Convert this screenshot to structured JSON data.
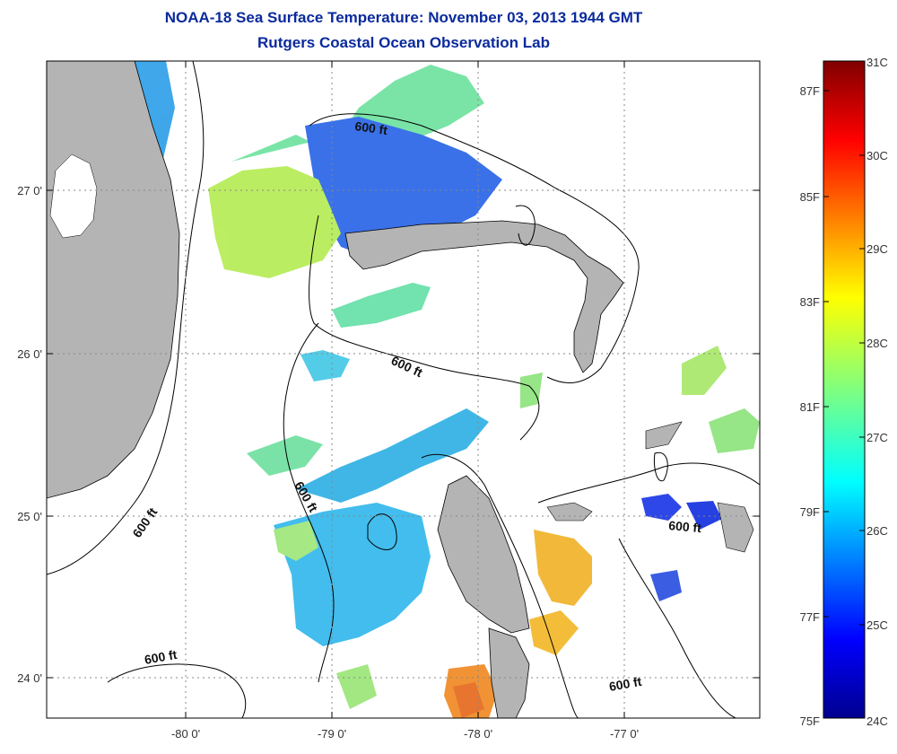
{
  "header": {
    "title": "NOAA-18 Sea Surface Temperature:  November 03, 2013 1944 GMT",
    "subtitle": "Rutgers Coastal Ocean Observation Lab"
  },
  "map": {
    "lon_ticks": [
      "-80 0'",
      "-79 0'",
      "-78 0'",
      "-77 0'"
    ],
    "lat_ticks": [
      "27 0'",
      "26 0'",
      "25 0'",
      "24 0'"
    ],
    "contour_label": "600 ft",
    "colors": {
      "land": "#b4b4b4",
      "coast": "#000000",
      "grid": "#888888"
    }
  },
  "colorbar": {
    "celsius_labels": [
      "31C",
      "30C",
      "29C",
      "28C",
      "27C",
      "26C",
      "25C",
      "24C"
    ],
    "fahrenheit_labels": [
      "87F",
      "85F",
      "83F",
      "81F",
      "79F",
      "77F",
      "75F"
    ],
    "range_c": [
      24,
      31
    ]
  }
}
